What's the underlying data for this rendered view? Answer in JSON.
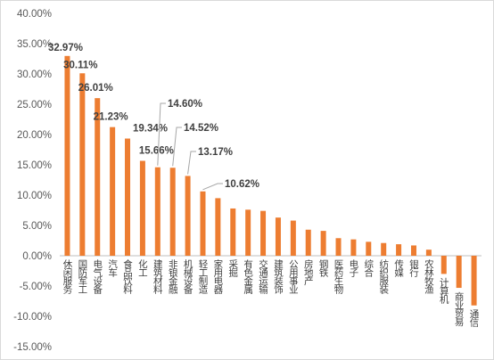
{
  "chart_data": {
    "type": "bar",
    "title": "",
    "xlabel": "",
    "ylabel": "",
    "ylim": [
      -15,
      40
    ],
    "ytick_step": 5,
    "y_tick_labels": [
      "-15.00%",
      "-10.00%",
      "-5.00%",
      "0.00%",
      "5.00%",
      "10.00%",
      "15.00%",
      "20.00%",
      "25.00%",
      "30.00%",
      "35.00%",
      "40.00%"
    ],
    "grid": false,
    "legend": "none",
    "bar_color": "#ED7D31",
    "categories": [
      "休闲服务",
      "国防军工",
      "电气设备",
      "汽车",
      "食品饮料",
      "化工",
      "建筑材料",
      "非银金融",
      "机械设备",
      "轻工制造",
      "家用电器",
      "采掘",
      "有色金属",
      "交通运输",
      "建筑装饰",
      "公用事业",
      "房地产",
      "钢铁",
      "医药生物",
      "电子",
      "综合",
      "纺织服装",
      "传媒",
      "银行",
      "农林牧渔",
      "计算机",
      "商业贸易",
      "通信"
    ],
    "values": [
      32.97,
      30.11,
      26.01,
      21.23,
      19.34,
      15.66,
      14.6,
      14.52,
      13.17,
      10.62,
      9.5,
      7.8,
      7.6,
      7.4,
      6.3,
      5.8,
      4.3,
      4.1,
      2.9,
      2.7,
      2.3,
      2.1,
      1.9,
      1.7,
      1.0,
      -3.0,
      -5.3,
      -8.2
    ],
    "data_labels": [
      {
        "index": 0,
        "text": "32.97%"
      },
      {
        "index": 1,
        "text": "30.11%"
      },
      {
        "index": 2,
        "text": "26.01%"
      },
      {
        "index": 3,
        "text": "21.23%"
      },
      {
        "index": 4,
        "text": "19.34%"
      },
      {
        "index": 5,
        "text": "15.66%"
      },
      {
        "index": 6,
        "text": "14.60%"
      },
      {
        "index": 7,
        "text": "14.52%"
      },
      {
        "index": 8,
        "text": "13.17%"
      },
      {
        "index": 9,
        "text": "10.62%"
      }
    ]
  }
}
